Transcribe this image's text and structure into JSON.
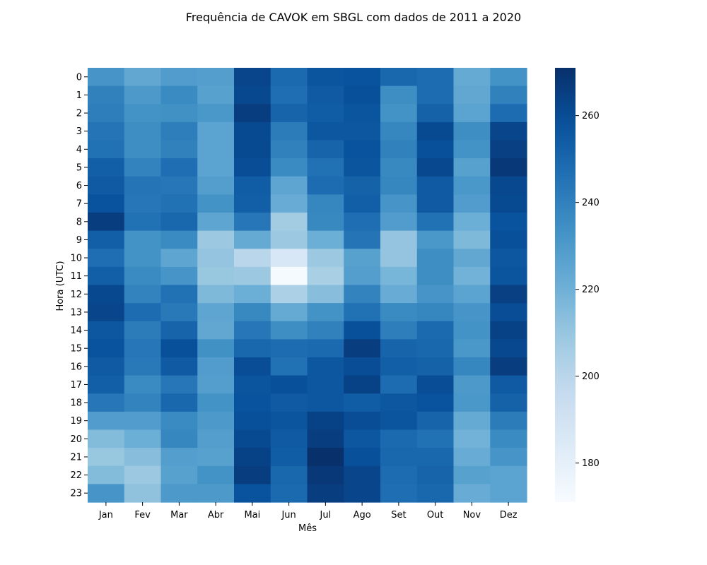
{
  "chart_data": {
    "type": "heatmap",
    "title": "Frequência de CAVOK em SBGL com dados de 2011 a 2020",
    "xlabel": "Mês",
    "ylabel": "Hora (UTC)",
    "x_categories": [
      "Jan",
      "Fev",
      "Mar",
      "Abr",
      "Mai",
      "Jun",
      "Jul",
      "Ago",
      "Set",
      "Out",
      "Nov",
      "Dez"
    ],
    "y_categories": [
      "0",
      "1",
      "2",
      "3",
      "4",
      "5",
      "6",
      "7",
      "8",
      "9",
      "10",
      "11",
      "12",
      "13",
      "14",
      "15",
      "16",
      "17",
      "18",
      "19",
      "20",
      "21",
      "22",
      "23"
    ],
    "values": [
      [
        232,
        224,
        229,
        228,
        263,
        249,
        257,
        258,
        250,
        248,
        223,
        233
      ],
      [
        240,
        230,
        236,
        227,
        262,
        247,
        255,
        259,
        235,
        248,
        224,
        240
      ],
      [
        241,
        233,
        234,
        231,
        266,
        251,
        254,
        257,
        233,
        252,
        226,
        248
      ],
      [
        245,
        235,
        241,
        226,
        261,
        242,
        256,
        256,
        238,
        261,
        235,
        263
      ],
      [
        246,
        235,
        240,
        226,
        261,
        240,
        251,
        258,
        240,
        259,
        233,
        265
      ],
      [
        253,
        239,
        247,
        226,
        260,
        236,
        246,
        257,
        237,
        262,
        227,
        268
      ],
      [
        255,
        245,
        244,
        228,
        254,
        225,
        248,
        252,
        238,
        255,
        231,
        262
      ],
      [
        258,
        244,
        246,
        233,
        253,
        222,
        238,
        253,
        232,
        255,
        229,
        261
      ],
      [
        266,
        246,
        250,
        225,
        244,
        207,
        237,
        247,
        229,
        246,
        221,
        258
      ],
      [
        253,
        233,
        236,
        209,
        223,
        209,
        221,
        245,
        211,
        231,
        216,
        259
      ],
      [
        247,
        233,
        225,
        211,
        200,
        187,
        209,
        227,
        211,
        235,
        224,
        256
      ],
      [
        253,
        236,
        232,
        210,
        209,
        172,
        205,
        228,
        218,
        235,
        219,
        257
      ],
      [
        262,
        239,
        246,
        216,
        221,
        204,
        214,
        239,
        222,
        232,
        226,
        265
      ],
      [
        263,
        248,
        243,
        225,
        237,
        223,
        233,
        246,
        236,
        238,
        232,
        260
      ],
      [
        256,
        242,
        251,
        224,
        244,
        235,
        240,
        259,
        241,
        249,
        233,
        264
      ],
      [
        258,
        244,
        259,
        234,
        250,
        248,
        249,
        266,
        251,
        250,
        231,
        262
      ],
      [
        255,
        243,
        255,
        229,
        260,
        246,
        256,
        260,
        253,
        252,
        238,
        266
      ],
      [
        253,
        236,
        244,
        228,
        257,
        259,
        256,
        264,
        248,
        260,
        230,
        255
      ],
      [
        244,
        239,
        250,
        233,
        258,
        255,
        256,
        254,
        256,
        258,
        231,
        252
      ],
      [
        229,
        229,
        236,
        230,
        259,
        257,
        264,
        260,
        257,
        251,
        223,
        242
      ],
      [
        215,
        221,
        238,
        228,
        261,
        255,
        266,
        256,
        249,
        246,
        219,
        236
      ],
      [
        210,
        214,
        228,
        227,
        264,
        254,
        271,
        259,
        250,
        250,
        222,
        232
      ],
      [
        215,
        209,
        227,
        233,
        266,
        250,
        268,
        263,
        248,
        251,
        227,
        226
      ],
      [
        232,
        212,
        230,
        230,
        258,
        249,
        266,
        263,
        247,
        250,
        222,
        226
      ]
    ],
    "vmin": 171,
    "vmax": 271,
    "colormap": "Blues",
    "colorbar_ticks": [
      180,
      200,
      220,
      240,
      260
    ],
    "grid": false
  }
}
